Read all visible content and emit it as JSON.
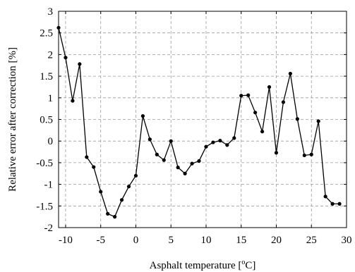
{
  "chart_data": {
    "type": "line",
    "title": "",
    "xlabel": "Asphalt temperature [",
    "xlabel_super": "o",
    "xlabel_suffix": "C]",
    "ylabel": "Relative error after correction [%]",
    "xlim": [
      -11,
      30
    ],
    "ylim": [
      -2,
      3
    ],
    "x_ticks": [
      -10,
      -5,
      0,
      5,
      10,
      15,
      20,
      25,
      30
    ],
    "x_tick_labels": [
      "-10",
      "-5",
      "0",
      "5",
      "10",
      "15",
      "20",
      "25",
      "30"
    ],
    "y_ticks": [
      -2,
      -1.5,
      -1,
      -0.5,
      0,
      0.5,
      1,
      1.5,
      2,
      2.5,
      3
    ],
    "y_tick_labels": [
      "-2",
      "-1.5",
      "-1",
      "-0.5",
      "0",
      "0.5",
      "1",
      "1.5",
      "2",
      "2.5",
      "3"
    ],
    "grid": true,
    "line_color": "#000000",
    "grid_color": "#9a9a9a",
    "series": [
      {
        "x": [
          -11,
          -10,
          -9,
          -8,
          -7,
          -6,
          -5,
          -4,
          -3,
          -2,
          -1,
          0,
          1,
          2,
          3,
          4,
          5,
          6,
          7,
          8,
          9,
          10,
          11,
          12,
          13,
          14,
          15,
          16,
          17,
          18,
          19,
          20,
          21,
          22,
          23,
          24,
          25,
          26,
          27,
          28,
          29
        ],
        "y": [
          2.62,
          1.93,
          0.93,
          1.78,
          -0.37,
          -0.6,
          -1.17,
          -1.68,
          -1.75,
          -1.36,
          -1.05,
          -0.8,
          0.58,
          0.04,
          -0.31,
          -0.44,
          0.0,
          -0.61,
          -0.75,
          -0.52,
          -0.46,
          -0.13,
          -0.03,
          0.01,
          -0.09,
          0.07,
          1.05,
          1.06,
          0.66,
          0.22,
          1.25,
          -0.27,
          0.9,
          1.56,
          0.51,
          -0.33,
          -0.31,
          0.46,
          -1.28,
          -1.45,
          -1.45
        ]
      }
    ]
  }
}
